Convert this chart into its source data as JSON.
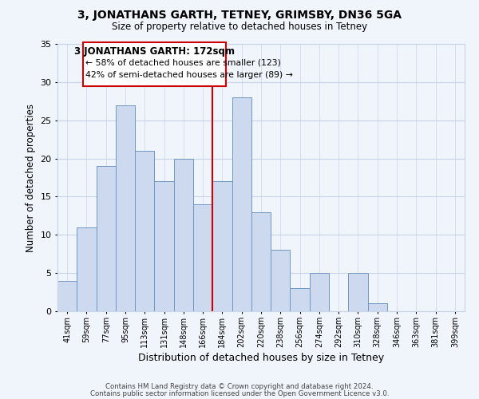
{
  "title": "3, JONATHANS GARTH, TETNEY, GRIMSBY, DN36 5GA",
  "subtitle": "Size of property relative to detached houses in Tetney",
  "xlabel": "Distribution of detached houses by size in Tetney",
  "ylabel": "Number of detached properties",
  "bar_labels": [
    "41sqm",
    "59sqm",
    "77sqm",
    "95sqm",
    "113sqm",
    "131sqm",
    "148sqm",
    "166sqm",
    "184sqm",
    "202sqm",
    "220sqm",
    "238sqm",
    "256sqm",
    "274sqm",
    "292sqm",
    "310sqm",
    "328sqm",
    "346sqm",
    "363sqm",
    "381sqm",
    "399sqm"
  ],
  "bar_values": [
    4,
    11,
    19,
    27,
    21,
    17,
    20,
    14,
    17,
    28,
    13,
    8,
    3,
    5,
    0,
    5,
    1,
    0,
    0,
    0,
    0
  ],
  "bar_color": "#ccd9ee",
  "bar_edge_color": "#7096c0",
  "highlight_color": "#cc0000",
  "ylim": [
    0,
    35
  ],
  "yticks": [
    0,
    5,
    10,
    15,
    20,
    25,
    30,
    35
  ],
  "annotation_title": "3 JONATHANS GARTH: 172sqm",
  "annotation_line1": "← 58% of detached houses are smaller (123)",
  "annotation_line2": "42% of semi-detached houses are larger (89) →",
  "annotation_box_color": "#ffffff",
  "annotation_box_edge": "#cc0000",
  "footer_line1": "Contains HM Land Registry data © Crown copyright and database right 2024.",
  "footer_line2": "Contains public sector information licensed under the Open Government Licence v3.0.",
  "background_color": "#f0f4fb",
  "grid_color": "#c8d4e8"
}
